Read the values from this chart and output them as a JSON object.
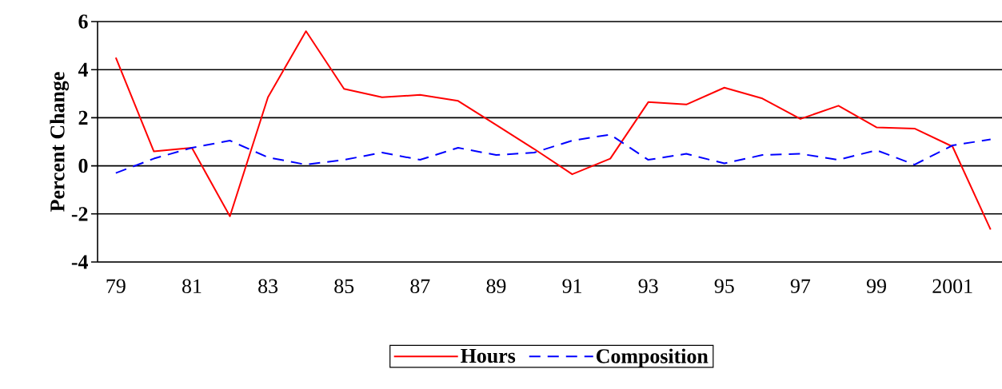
{
  "chart_data": {
    "type": "line",
    "ylabel": "Percent Change",
    "categories": [
      "79",
      null,
      "81",
      null,
      "83",
      null,
      "85",
      null,
      "87",
      null,
      "89",
      null,
      "91",
      null,
      "93",
      null,
      "95",
      null,
      "97",
      null,
      "99",
      null,
      "2001",
      null
    ],
    "series": [
      {
        "name": "Hours",
        "color": "#ff0000",
        "line_style": "solid",
        "values": [
          4.5,
          0.6,
          0.75,
          -2.1,
          2.85,
          5.6,
          3.2,
          2.85,
          2.95,
          2.7,
          1.7,
          0.7,
          -0.35,
          0.3,
          2.65,
          2.55,
          3.25,
          2.8,
          1.95,
          2.5,
          1.6,
          1.55,
          0.8,
          -2.65
        ]
      },
      {
        "name": "Composition",
        "color": "#0000ff",
        "line_style": "dashed",
        "values": [
          -0.3,
          0.3,
          0.75,
          1.05,
          0.35,
          0.05,
          0.25,
          0.55,
          0.25,
          0.75,
          0.45,
          0.55,
          1.05,
          1.3,
          0.25,
          0.5,
          0.1,
          0.45,
          0.5,
          0.25,
          0.65,
          0.05,
          0.85,
          1.1
        ]
      }
    ],
    "ylim": [
      -4,
      6
    ],
    "yticks": [
      -4,
      -2,
      0,
      2,
      4,
      6
    ],
    "grid": "y",
    "legend": "bottom"
  }
}
